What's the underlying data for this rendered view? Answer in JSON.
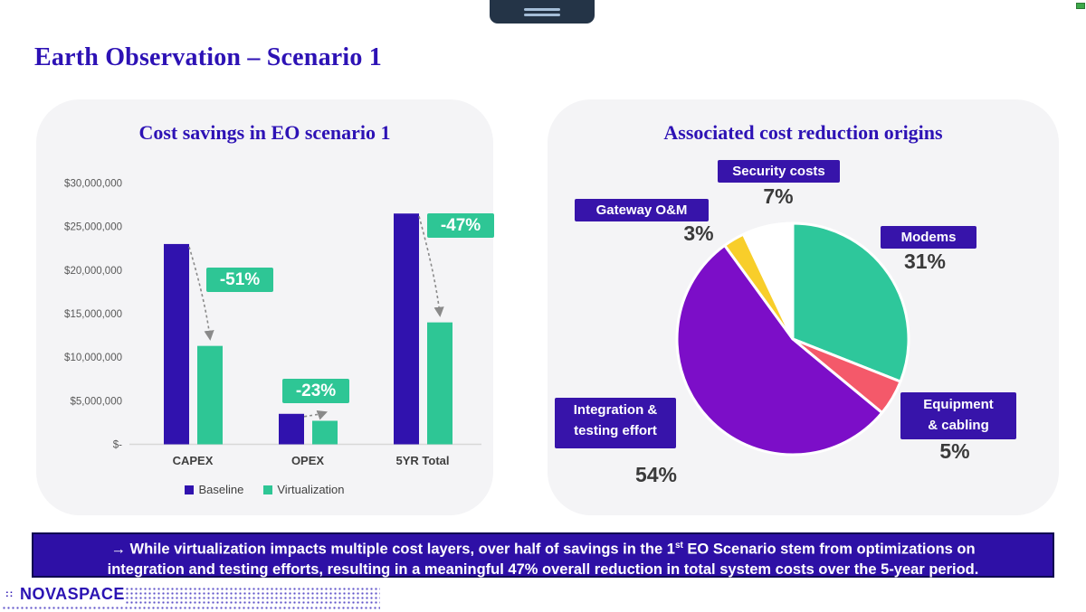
{
  "page_title": "Earth Observation – Scenario 1",
  "chart_data": [
    {
      "type": "bar",
      "title": "Cost savings in EO scenario 1",
      "categories": [
        "CAPEX",
        "OPEX",
        "5YR Total"
      ],
      "series": [
        {
          "name": "Baseline",
          "color": "#3012ae",
          "values": [
            23000000,
            3500000,
            26500000
          ]
        },
        {
          "name": "Virtualization",
          "color": "#2ec695",
          "values": [
            11300000,
            2700000,
            14000000
          ]
        }
      ],
      "change_labels": [
        "-51%",
        "-23%",
        "-47%"
      ],
      "change_badge_color": "#2ec695",
      "y_ticks": [
        "$30,000,000",
        "$25,000,000",
        "$20,000,000",
        "$15,000,000",
        "$10,000,000",
        "$5,000,000",
        "$-"
      ],
      "ylim": [
        0,
        30000000
      ],
      "grid": false,
      "legend_position": "bottom"
    },
    {
      "type": "pie",
      "title": "Associated cost reduction origins",
      "start_angle_deg": -90,
      "direction": "clockwise",
      "slices": [
        {
          "label": "Modems",
          "pct": "31%",
          "value": 31,
          "color": "#2ec79b"
        },
        {
          "label": "Equipment & cabling",
          "label_lines": [
            "Equipment",
            "& cabling"
          ],
          "pct": "5%",
          "value": 5,
          "color": "#f4596a"
        },
        {
          "label": "Integration & testing effort",
          "label_lines": [
            "Integration &",
            "testing effort"
          ],
          "pct": "54%",
          "value": 54,
          "color": "#7c0ec8"
        },
        {
          "label": "Gateway O&M",
          "pct": "3%",
          "value": 3,
          "color": "#f8ce2a"
        },
        {
          "label": "Security costs",
          "pct": "7%",
          "value": 7,
          "color": "#ffffff"
        }
      ]
    }
  ],
  "banner": {
    "line1_pre": "→ While virtualization impacts multiple cost layers, over half of savings in the 1",
    "line1_sup": "st",
    "line1_post": " EO Scenario stem from optimizations on",
    "line2": "integration and testing efforts, resulting in a meaningful 47% overall reduction in total system costs over the 5-year period."
  },
  "footer": {
    "logo_prefix": "::",
    "logo_text": "NOVASPACE"
  }
}
